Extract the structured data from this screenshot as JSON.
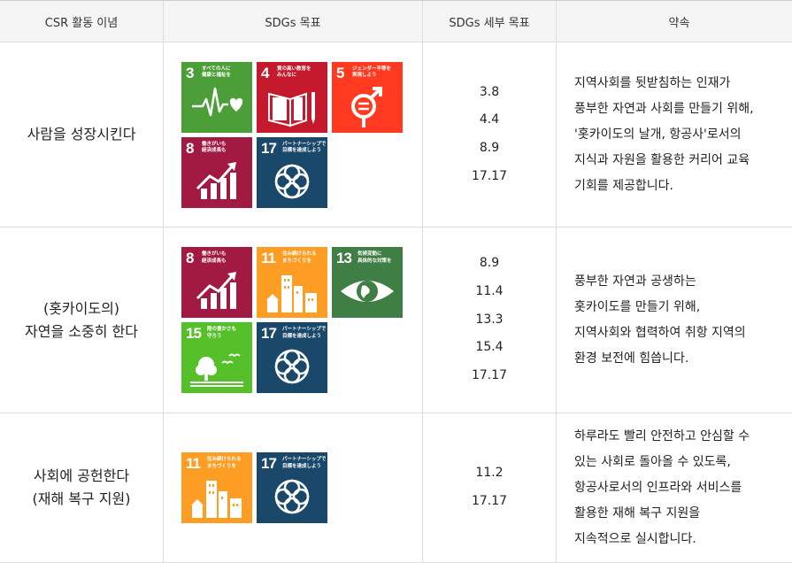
{
  "table": {
    "headers": [
      "CSR 활동 이념",
      "SDGs 목표",
      "SDGs 세부 목표",
      "약속"
    ],
    "rows": [
      {
        "concept": [
          "사람을 성장시킨다"
        ],
        "goals": [
          3,
          4,
          5,
          8,
          17
        ],
        "targets": [
          "3.8",
          "4.4",
          "8.9",
          "17.17"
        ],
        "promise": [
          "지역사회를 뒷받침하는 인재가",
          "풍부한 자연과 사회를 만들기 위해,",
          "'홋카이도의 날개, 항공사'로서의",
          "지식과 자원을 활용한 커리어 교육",
          "기회를 제공합니다."
        ]
      },
      {
        "concept": [
          "(홋카이도의)",
          "자연을 소중히 한다"
        ],
        "goals": [
          8,
          11,
          13,
          15,
          17
        ],
        "targets": [
          "8.9",
          "11.4",
          "13.3",
          "15.4",
          "17.17"
        ],
        "promise": [
          "풍부한 자연과 공생하는",
          "홋카이도를 만들기 위해,",
          "지역사회와 협력하여 취항 지역의",
          "환경 보전에 힘씁니다."
        ]
      },
      {
        "concept": [
          "사회에 공헌한다",
          "(재해 복구 지원)"
        ],
        "goals": [
          11,
          17
        ],
        "targets": [
          "11.2",
          "17.17"
        ],
        "promise": [
          "하루라도 빨리 안전하고 안심할 수",
          "있는 사회로 돌아올 수 있도록,",
          "항공사로서의 인프라와 서비스를",
          "활용한 재해 복구 지원을",
          "지속적으로 실시합니다."
        ]
      }
    ]
  },
  "sdg_goals": {
    "3": {
      "number": "3",
      "lines": [
        "すべての人に",
        "健康と福祉を"
      ],
      "color": "#4c9f38",
      "icon": "heartbeat-icon"
    },
    "4": {
      "number": "4",
      "lines": [
        "質の高い教育を",
        "みんなに"
      ],
      "color": "#c5192d",
      "icon": "book-icon"
    },
    "5": {
      "number": "5",
      "lines": [
        "ジェンダー平等を",
        "実現しよう"
      ],
      "color": "#ff3a21",
      "icon": "gender-equality-icon"
    },
    "8": {
      "number": "8",
      "lines": [
        "働きがいも",
        "経済成長も"
      ],
      "color": "#a21942",
      "icon": "growth-chart-icon"
    },
    "11": {
      "number": "11",
      "lines": [
        "住み続けられる",
        "まちづくりを"
      ],
      "color": "#fd9d24",
      "icon": "city-icon"
    },
    "13": {
      "number": "13",
      "lines": [
        "気候変動に",
        "具体的な対策を"
      ],
      "color": "#3f7e44",
      "icon": "eye-globe-icon"
    },
    "15": {
      "number": "15",
      "lines": [
        "陸の豊かさも",
        "守ろう"
      ],
      "color": "#56c02b",
      "icon": "tree-birds-icon"
    },
    "17": {
      "number": "17",
      "lines": [
        "パートナーシップで",
        "目標を達成しよう"
      ],
      "color": "#19486a",
      "icon": "partnership-rings-icon"
    }
  }
}
